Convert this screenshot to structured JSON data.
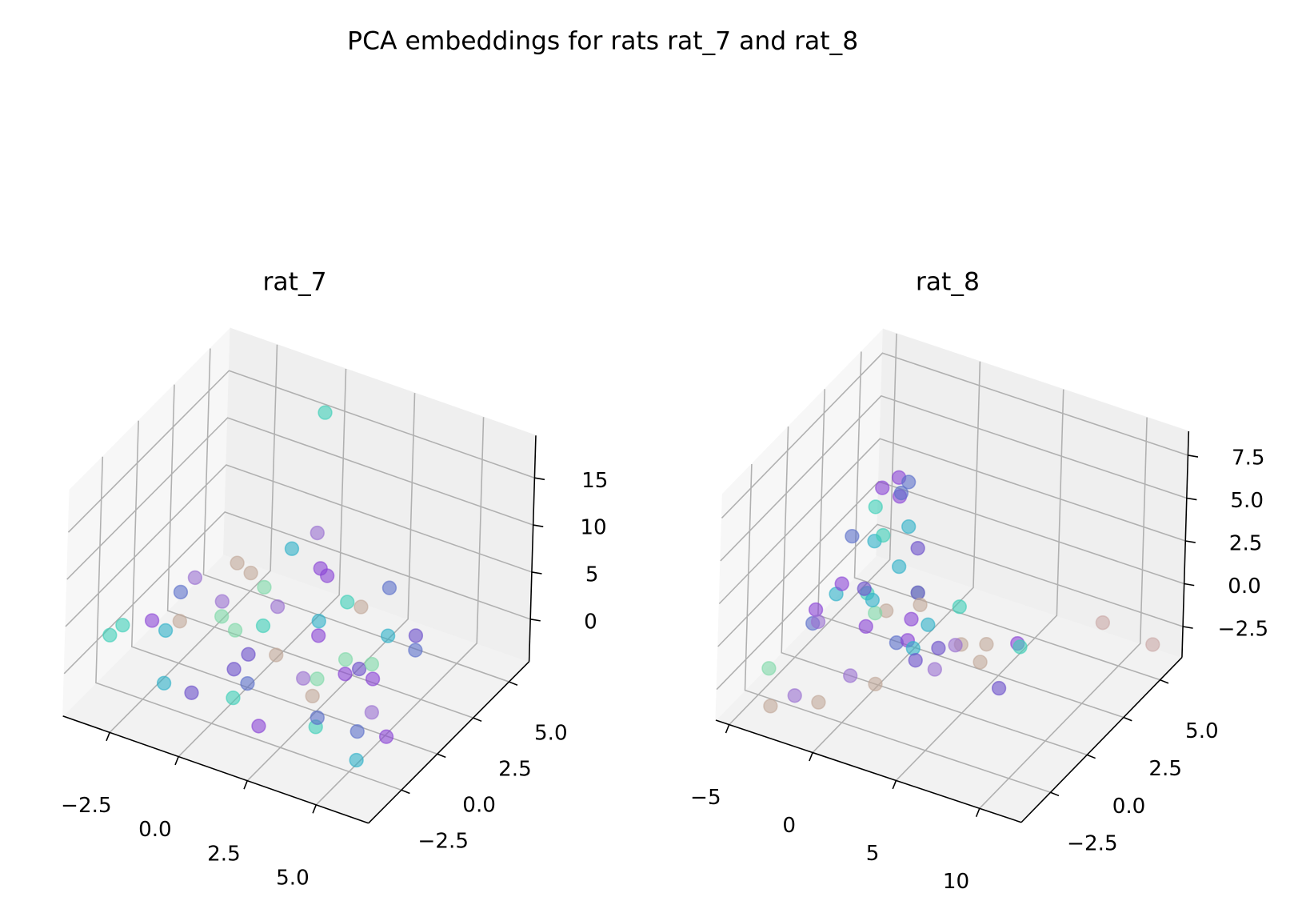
{
  "title": "PCA embeddings for rats rat_7 and rat_8",
  "chart_data": [
    {
      "type": "scatter3d",
      "title": "rat_7",
      "xlim": [
        -4.2,
        6.9
      ],
      "ylim": [
        -4.8,
        6.4
      ],
      "zlim": [
        -4.5,
        19.5
      ],
      "xticks": [
        {
          "value": -2.5,
          "label": "−2.5"
        },
        {
          "value": 0,
          "label": "0.0"
        },
        {
          "value": 2.5,
          "label": "2.5"
        },
        {
          "value": 5,
          "label": "5.0"
        }
      ],
      "yticks": [
        {
          "value": -2.5,
          "label": "−2.5"
        },
        {
          "value": 0,
          "label": "0.0"
        },
        {
          "value": 2.5,
          "label": "2.5"
        },
        {
          "value": 5,
          "label": "5.0"
        }
      ],
      "zticks": [
        0,
        5,
        10,
        15
      ],
      "grid": true,
      "alpha": 0.6,
      "x": [
        -4,
        -3.5,
        -3,
        -2.5,
        -2,
        -1.5,
        -1,
        -0.5,
        0,
        0.5,
        1,
        1.5,
        2,
        2.5,
        3,
        3.5,
        4,
        4.5,
        5,
        5.5,
        -3,
        -2,
        -1,
        0,
        1,
        2,
        3,
        4,
        5,
        -2.5,
        -1,
        0.5,
        2,
        3.5,
        5,
        -1.5,
        0,
        1.5,
        3,
        4.5,
        0,
        1.3,
        -3.8,
        2.2,
        3.8,
        -0.8,
        1,
        2.6,
        4.2,
        5.8
      ],
      "y": [
        -2,
        0,
        1,
        -1,
        2,
        3,
        0,
        -3,
        1,
        4,
        -2,
        2,
        0,
        3,
        -1,
        1,
        -3,
        0,
        -2,
        -3,
        2,
        -1,
        3,
        0,
        -3,
        1,
        4,
        2,
        -1,
        4,
        1,
        -2,
        3,
        0,
        2,
        -3,
        2,
        -1,
        1,
        3,
        5,
        2.1,
        -1.5,
        -3.5,
        -2.5,
        4.5,
        3.5,
        -0.5,
        0.5,
        -1.5
      ],
      "z": [
        0,
        -1,
        1,
        0.5,
        -0.5,
        1.5,
        2,
        -1,
        0.5,
        2.5,
        0,
        1,
        -1.5,
        2,
        1,
        -0.5,
        0,
        1,
        -1,
        -2,
        1,
        2,
        0.5,
        -1,
        0,
        1.5,
        3,
        2,
        -0.5,
        0,
        -1,
        1,
        2,
        0.5,
        1.5,
        -1,
        1,
        2,
        0,
        1,
        17,
        10,
        0.5,
        -1,
        0,
        2.5,
        3,
        -2,
        1.5,
        -1.5
      ],
      "colors": [
        "#3ecfb8",
        "#8b45d6",
        "#5b6fc9",
        "#2fb0c8",
        "#9a6fd0",
        "#c2a99a",
        "#7fd9a8",
        "#6a4fc9",
        "#3ecfb8",
        "#8b45d6",
        "#5b6fc9",
        "#2fb0c8",
        "#9a6fd0",
        "#c2a99a",
        "#7fd9a8",
        "#6a4fc9",
        "#3ecfb8",
        "#8b45d6",
        "#5b6fc9",
        "#2fb0c8",
        "#9a6fd0",
        "#c2a99a",
        "#7fd9a8",
        "#6a4fc9",
        "#3ecfb8",
        "#8b45d6",
        "#5b6fc9",
        "#2fb0c8",
        "#9a6fd0",
        "#c2a99a",
        "#7fd9a8",
        "#6a4fc9",
        "#3ecfb8",
        "#8b45d6",
        "#5b6fc9",
        "#2fb0c8",
        "#9a6fd0",
        "#c2a99a",
        "#7fd9a8",
        "#6a4fc9",
        "#3ecfb8",
        "#9a6fd0",
        "#3ecfb8",
        "#8b45d6",
        "#5b6fc9",
        "#2fb0c8",
        "#8b45d6",
        "#c2a99a",
        "#7fd9a8",
        "#8b45d6"
      ]
    },
    {
      "type": "scatter3d",
      "title": "rat_8",
      "xlim": [
        -5.8,
        12.5
      ],
      "ylim": [
        -4.5,
        6.5
      ],
      "zlim": [
        -4.3,
        8.9
      ],
      "xticks": [
        {
          "value": -5,
          "label": "−5"
        },
        0,
        5,
        10
      ],
      "yticks": [
        {
          "value": -2.5,
          "label": "−2.5"
        },
        {
          "value": 0,
          "label": "0.0"
        },
        {
          "value": 2.5,
          "label": "2.5"
        },
        {
          "value": 5,
          "label": "5.0"
        }
      ],
      "zticks": [
        {
          "value": -2.5,
          "label": "−2.5"
        },
        {
          "value": 0,
          "label": "0.0"
        },
        {
          "value": 2.5,
          "label": "2.5"
        },
        {
          "value": 5,
          "label": "5.0"
        },
        {
          "value": 7.5,
          "label": "7.5"
        }
      ],
      "grid": true,
      "alpha": 0.6,
      "x": [
        -4,
        -3.5,
        -3,
        -2.5,
        -2,
        -1.5,
        -1,
        -0.5,
        0,
        0.5,
        1,
        1.5,
        2,
        2.5,
        3,
        3.5,
        4,
        -3,
        -2,
        -1,
        0,
        1,
        2,
        3,
        -3.5,
        -2.5,
        -1.5,
        -0.5,
        0.5,
        1.5,
        -3,
        -2,
        -1,
        0,
        -2.5,
        -1.5,
        4.5,
        5.5,
        6.5,
        7.5,
        8,
        5,
        6,
        -4,
        -3,
        -2,
        12,
        9,
        -2.8,
        -1.5
      ],
      "y": [
        0,
        1,
        -1,
        2,
        -2,
        3,
        0,
        1,
        -1,
        2,
        0,
        -2,
        1,
        -1,
        2,
        0,
        1,
        3,
        2,
        -3,
        -2,
        1,
        0,
        -1,
        2,
        3,
        -1,
        0,
        2,
        1,
        3,
        3.5,
        3,
        2.5,
        4,
        3,
        0,
        1,
        2,
        1,
        -1,
        -2,
        0,
        -3,
        -4,
        -3.5,
        5,
        5,
        3.2,
        3.5
      ],
      "z": [
        -2,
        -1,
        0,
        -1.5,
        0.5,
        -0.5,
        1,
        -1,
        0,
        -0.5,
        -1.5,
        -2,
        -1,
        0,
        -0.5,
        -1,
        -1.5,
        0.5,
        -2.5,
        -3,
        -2,
        -1,
        -1.5,
        -1,
        1.5,
        1,
        2,
        0.5,
        -0.5,
        0,
        2.5,
        3,
        2,
        1.5,
        3.5,
        3.8,
        -0.5,
        -1,
        -1.5,
        -0.5,
        -1,
        0,
        -1,
        -2,
        -3,
        -2.5,
        -2.4,
        -2.1,
        3.5,
        4
      ],
      "colors": [
        "#5b6fc9",
        "#2fb0c8",
        "#8b45d6",
        "#3ecfb8",
        "#9a6fd0",
        "#2fb0c8",
        "#6a4fc9",
        "#c2a99a",
        "#8b45d6",
        "#7fd9a8",
        "#5b6fc9",
        "#c2a99a",
        "#2fb0c8",
        "#8b45d6",
        "#3ecfb8",
        "#6a4fc9",
        "#c2a99a",
        "#2fb0c8",
        "#7fd9a8",
        "#c2a99a",
        "#9a6fd0",
        "#8b45d6",
        "#2fb0c8",
        "#6a4fc9",
        "#5b6fc9",
        "#3ecfb8",
        "#8b45d6",
        "#2fb0c8",
        "#6a4fc9",
        "#c2a99a",
        "#3ecfb8",
        "#8b45d6",
        "#2fb0c8",
        "#6a4fc9",
        "#8b45d6",
        "#5b6fc9",
        "#9a6fd0",
        "#c2a99a",
        "#8b45d6",
        "#3ecfb8",
        "#6a4fc9",
        "#9a6fd0",
        "#c2a99a",
        "#7fd9a8",
        "#c2a99a",
        "#9a6fd0",
        "#c9a9a6",
        "#c9a9a6",
        "#8b45d6",
        "#5b6fc9"
      ]
    }
  ]
}
